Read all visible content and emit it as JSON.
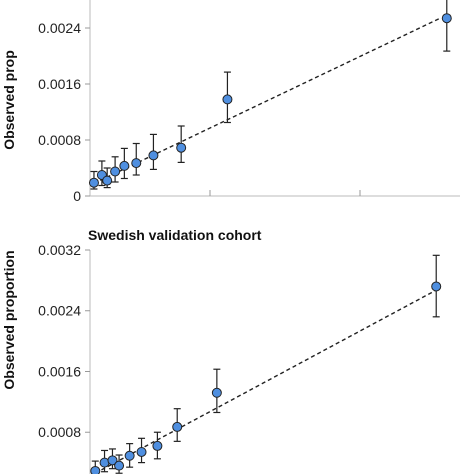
{
  "colors": {
    "point_fill": "#4f8fe0",
    "point_stroke": "#222222",
    "axis": "#bbbbbb"
  },
  "chart_data": [
    {
      "type": "scatter",
      "title": "",
      "ylabel": "Observed prop",
      "xlabel": "",
      "ylim": [
        0,
        0.0028
      ],
      "yticks": [
        {
          "value": 0,
          "label": "0"
        },
        {
          "value": 0.0008,
          "label": "0.0008"
        },
        {
          "value": 0.0016,
          "label": "0.0016"
        },
        {
          "value": 0.0024,
          "label": "0.0024"
        }
      ],
      "xlim": [
        0,
        0.0028
      ],
      "grid": false,
      "fit_line": [
        [
          3e-05,
          0.00018
        ],
        [
          0.00265,
          0.00254
        ]
      ],
      "points": [
        {
          "x": 3e-05,
          "y": 0.00019,
          "lo": 0.0001,
          "hi": 0.00035
        },
        {
          "x": 9e-05,
          "y": 0.0003,
          "lo": 0.00015,
          "hi": 0.0005
        },
        {
          "x": 0.00013,
          "y": 0.00022,
          "lo": 0.00012,
          "hi": 0.0004
        },
        {
          "x": 0.00019,
          "y": 0.00035,
          "lo": 0.0002,
          "hi": 0.00056
        },
        {
          "x": 0.00026,
          "y": 0.00043,
          "lo": 0.00025,
          "hi": 0.00068
        },
        {
          "x": 0.00035,
          "y": 0.00047,
          "lo": 0.0003,
          "hi": 0.00075
        },
        {
          "x": 0.00048,
          "y": 0.00058,
          "lo": 0.00038,
          "hi": 0.00088
        },
        {
          "x": 0.00069,
          "y": 0.00069,
          "lo": 0.00048,
          "hi": 0.001
        },
        {
          "x": 0.00104,
          "y": 0.00138,
          "lo": 0.00105,
          "hi": 0.00177
        },
        {
          "x": 0.0027,
          "y": 0.00254,
          "lo": 0.00207,
          "hi": 0.00295
        }
      ]
    },
    {
      "type": "scatter",
      "title": "Swedish validation cohort",
      "ylabel": "Observed proportion",
      "xlabel": "",
      "ylim": [
        0.00025,
        0.0032
      ],
      "yticks": [
        {
          "value": 0.0008,
          "label": "0.0008"
        },
        {
          "value": 0.0016,
          "label": "0.0016"
        },
        {
          "value": 0.0024,
          "label": "0.0024"
        },
        {
          "value": 0.0032,
          "label": "0.0032"
        }
      ],
      "xlim": [
        0,
        0.0028
      ],
      "grid": false,
      "fit_line": [
        [
          4e-05,
          0.00026
        ],
        [
          0.00265,
          0.0027
        ]
      ],
      "points": [
        {
          "x": 4e-05,
          "y": 0.00029,
          "lo": 0.0002,
          "hi": 0.00042
        },
        {
          "x": 0.00011,
          "y": 0.0004,
          "lo": 0.00028,
          "hi": 0.00056
        },
        {
          "x": 0.00017,
          "y": 0.00043,
          "lo": 0.00032,
          "hi": 0.00058
        },
        {
          "x": 0.00022,
          "y": 0.00036,
          "lo": 0.00026,
          "hi": 0.0005
        },
        {
          "x": 0.0003,
          "y": 0.00049,
          "lo": 0.00034,
          "hi": 0.00065
        },
        {
          "x": 0.00039,
          "y": 0.00054,
          "lo": 0.0004,
          "hi": 0.00072
        },
        {
          "x": 0.00051,
          "y": 0.00062,
          "lo": 0.00045,
          "hi": 0.0008
        },
        {
          "x": 0.00066,
          "y": 0.00087,
          "lo": 0.00068,
          "hi": 0.00111
        },
        {
          "x": 0.00096,
          "y": 0.00132,
          "lo": 0.00106,
          "hi": 0.00163
        },
        {
          "x": 0.00262,
          "y": 0.00272,
          "lo": 0.00232,
          "hi": 0.00313
        }
      ]
    }
  ]
}
